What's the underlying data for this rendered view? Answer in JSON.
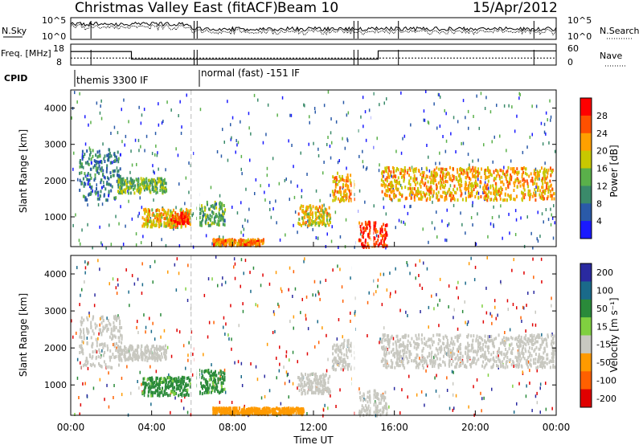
{
  "header": {
    "title": "Christmas Valley East (fitACF)",
    "beam": "Beam 10",
    "date": "15/Apr/2012"
  },
  "chart_data": [
    {
      "type": "line",
      "panel": "N.Sky / N.Search",
      "ylabel_left": "N.Sky",
      "ylabel_right": "N.Search",
      "left_ticks": [
        "10^5",
        "10^0"
      ],
      "right_ticks": [
        "10^5",
        "10^0"
      ],
      "log_scale": true,
      "series": [
        {
          "name": "N.Sky",
          "style": "solid"
        },
        {
          "name": "N.Search",
          "style": "dotted"
        }
      ]
    },
    {
      "type": "line",
      "panel": "Freq / Nave",
      "ylabel_left": "Freq. [MHz]",
      "ylabel_right": "Nave",
      "left_ticks": [
        "18",
        "8"
      ],
      "right_ticks": [
        "60",
        "0"
      ],
      "x": [
        0,
        1,
        1.05,
        3,
        6.05,
        6.15,
        6.3,
        13.9,
        14.1,
        14.9,
        15.2,
        16.2,
        18.3,
        22.85,
        24
      ],
      "series": [
        {
          "name": "Freq.",
          "style": "solid",
          "values": [
            14.5,
            14.5,
            14.5,
            10.8,
            10.8,
            10.8,
            10.8,
            10.8,
            10.8,
            10.8,
            14.8,
            14.8,
            14.8,
            14.8,
            14.8
          ]
        },
        {
          "name": "Nave",
          "style": "dotted",
          "values": [
            20,
            20,
            20,
            20,
            20,
            20,
            20,
            20,
            20,
            20,
            20,
            20,
            20,
            20,
            20
          ]
        }
      ]
    },
    {
      "type": "table",
      "panel": "CPID",
      "label": "CPID",
      "segments": [
        {
          "label": "themis 3300 IF",
          "start": 0.0
        },
        {
          "label": "normal (fast) -151 IF",
          "start": 6.2
        }
      ]
    },
    {
      "type": "heatmap",
      "panel": "Power",
      "ylabel": "Slant Range [km]",
      "xlabel": "",
      "ylim": [
        180,
        4500
      ],
      "y_ticks": [
        1000,
        2000,
        3000,
        4000
      ],
      "colorbar_label": "Power [dB]",
      "colorbar_ticks": [
        "4",
        "8",
        "12",
        "16",
        "20",
        "24",
        "28"
      ],
      "colorbar_range": [
        0,
        30
      ],
      "colors": [
        "#1a1aff",
        "#2a5aa8",
        "#3a8a6a",
        "#5ab04a",
        "#c8c800",
        "#ffa000",
        "#ff5000",
        "#ff0000"
      ],
      "features": [
        {
          "t": [
            0.4,
            2.5
          ],
          "r": [
            1500,
            2900
          ],
          "level": 8
        },
        {
          "t": [
            2.3,
            4.7
          ],
          "r": [
            1700,
            2100
          ],
          "level": 13
        },
        {
          "t": [
            3.5,
            5.9
          ],
          "r": [
            750,
            1250
          ],
          "level": 19
        },
        {
          "t": [
            4.9,
            5.8
          ],
          "r": [
            850,
            1150
          ],
          "level": 26
        },
        {
          "t": [
            6.2,
            7.6
          ],
          "r": [
            800,
            1450
          ],
          "level": 12
        },
        {
          "t": [
            7.0,
            9.5
          ],
          "r": [
            240,
            420
          ],
          "level": 22
        },
        {
          "t": [
            11.2,
            12.8
          ],
          "r": [
            800,
            1350
          ],
          "level": 18
        },
        {
          "t": [
            12.9,
            14.0
          ],
          "r": [
            1450,
            2250
          ],
          "level": 20
        },
        {
          "t": [
            14.2,
            15.6
          ],
          "r": [
            200,
            900
          ],
          "level": 26
        },
        {
          "t": [
            15.3,
            23.9
          ],
          "r": [
            1500,
            2400
          ],
          "level": 20
        }
      ]
    },
    {
      "type": "heatmap",
      "panel": "Velocity",
      "ylabel": "Slant Range [km]",
      "xlabel": "Time UT",
      "ylim": [
        180,
        4500
      ],
      "y_ticks": [
        1000,
        2000,
        3000,
        4000
      ],
      "x_ticks": [
        "00:00",
        "04:00",
        "08:00",
        "12:00",
        "16:00",
        "20:00",
        "00:00"
      ],
      "xlim": [
        0,
        24
      ],
      "colorbar_label": "Velocity [m s⁻¹]",
      "colorbar_ticks": [
        "200",
        "100",
        "50",
        "15",
        "-15",
        "-50",
        "-100",
        "-200"
      ],
      "colors": [
        "#2a2aa0",
        "#1a6a8a",
        "#2a8a3a",
        "#80d040",
        "#c8c8c0",
        "#ff9a00",
        "#ff6000",
        "#e00000"
      ],
      "features": [
        {
          "t": [
            0.4,
            2.5
          ],
          "r": [
            1500,
            2900
          ],
          "vel": 0
        },
        {
          "t": [
            2.3,
            4.7
          ],
          "r": [
            1700,
            2100
          ],
          "vel": 0
        },
        {
          "t": [
            3.5,
            5.9
          ],
          "r": [
            750,
            1250
          ],
          "vel": 35
        },
        {
          "t": [
            6.2,
            7.6
          ],
          "r": [
            800,
            1450
          ],
          "vel": 35
        },
        {
          "t": [
            7.0,
            11.5
          ],
          "r": [
            240,
            420
          ],
          "vel": -30
        },
        {
          "t": [
            11.2,
            12.8
          ],
          "r": [
            800,
            1350
          ],
          "vel": 0
        },
        {
          "t": [
            12.9,
            14.0
          ],
          "r": [
            1450,
            2250
          ],
          "vel": 0
        },
        {
          "t": [
            14.2,
            15.6
          ],
          "r": [
            200,
            900
          ],
          "vel": 0
        },
        {
          "t": [
            15.3,
            23.9
          ],
          "r": [
            1500,
            2400
          ],
          "vel": 0
        }
      ]
    }
  ]
}
